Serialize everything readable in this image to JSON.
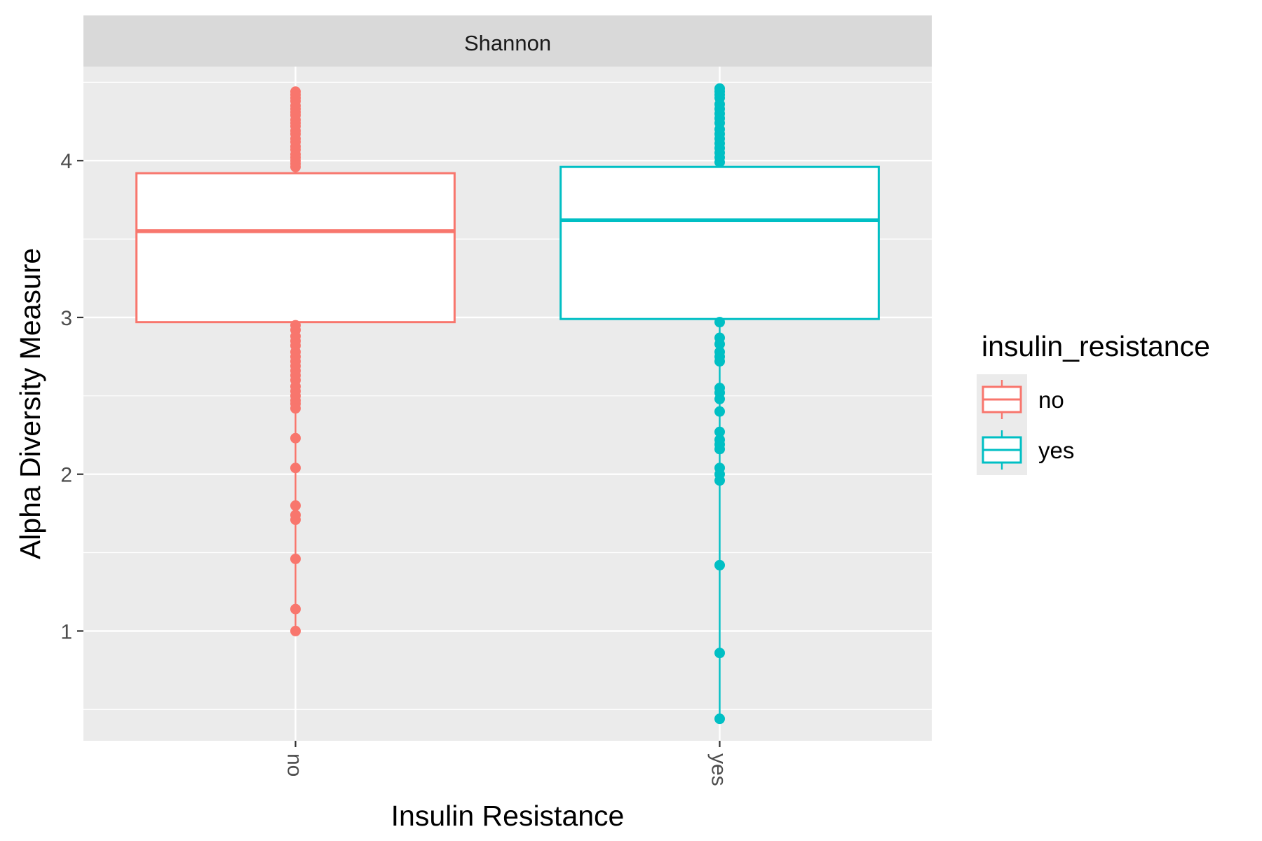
{
  "chart_data": {
    "type": "box",
    "facet_label": "Shannon",
    "xlabel": "Insulin Resistance",
    "ylabel": "Alpha Diversity Measure",
    "categories": [
      "no",
      "yes"
    ],
    "ylim": [
      0.3,
      4.6
    ],
    "y_ticks": [
      1,
      2,
      3,
      4
    ],
    "grid": true,
    "legend": {
      "title": "insulin_resistance",
      "position": "right",
      "entries": [
        "no",
        "yes"
      ]
    },
    "colors": {
      "no": "#f8766d",
      "yes": "#00bfc4"
    },
    "boxes": [
      {
        "name": "no",
        "q1": 2.97,
        "median": 3.55,
        "q3": 3.92,
        "whisker_low": 2.97,
        "whisker_high": 3.92,
        "outliers": [
          4.44,
          4.42,
          4.4,
          4.38,
          4.35,
          4.33,
          4.31,
          4.29,
          4.26,
          4.24,
          4.22,
          4.19,
          4.17,
          4.14,
          4.12,
          4.09,
          4.07,
          4.04,
          4.02,
          4.0,
          3.98,
          3.96,
          2.95,
          2.92,
          2.88,
          2.85,
          2.82,
          2.78,
          2.75,
          2.72,
          2.69,
          2.66,
          2.63,
          2.6,
          2.56,
          2.53,
          2.5,
          2.47,
          2.45,
          2.42,
          2.23,
          2.04,
          1.8,
          1.74,
          1.71,
          1.46,
          1.14,
          1.0
        ]
      },
      {
        "name": "yes",
        "q1": 2.99,
        "median": 3.62,
        "q3": 3.96,
        "whisker_low": 2.99,
        "whisker_high": 3.96,
        "outliers": [
          4.46,
          4.44,
          4.42,
          4.4,
          4.36,
          4.33,
          4.3,
          4.27,
          4.24,
          4.2,
          4.17,
          4.14,
          4.11,
          4.08,
          4.05,
          4.02,
          3.99,
          2.97,
          2.87,
          2.83,
          2.78,
          2.75,
          2.72,
          2.55,
          2.52,
          2.48,
          2.4,
          2.27,
          2.22,
          2.19,
          2.16,
          2.04,
          2.0,
          1.96,
          1.42,
          0.86,
          0.44
        ]
      }
    ]
  }
}
